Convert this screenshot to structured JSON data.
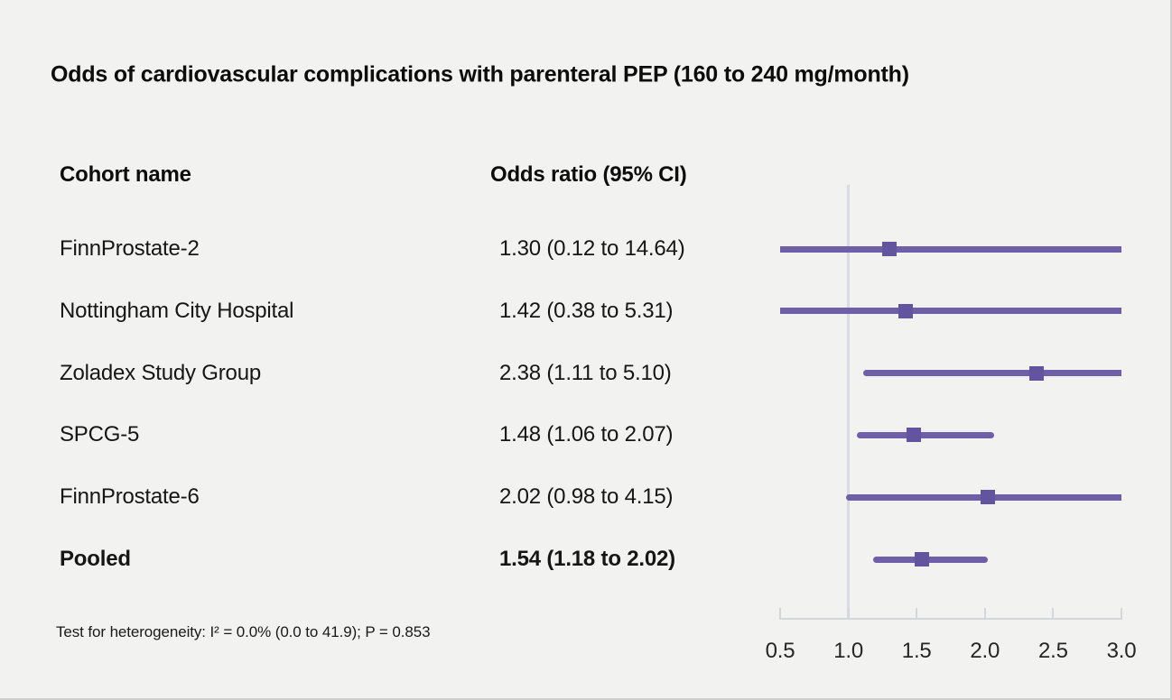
{
  "title": "Odds of cardiovascular complications with parenteral PEP (160 to 240 mg/month)",
  "table": {
    "cohort_header": "Cohort name",
    "or_header": "Odds ratio (95% CI)",
    "rows": [
      {
        "name": "FinnProstate-2",
        "or_text": "1.30 (0.12 to 14.64)"
      },
      {
        "name": "Nottingham City Hospital",
        "or_text": "1.42 (0.38 to 5.31)"
      },
      {
        "name": "Zoladex Study Group",
        "or_text": "2.38 (1.11 to 5.10)"
      },
      {
        "name": "SPCG-5",
        "or_text": "1.48 (1.06 to 2.07)"
      },
      {
        "name": "FinnProstate-6",
        "or_text": "2.02 (0.98 to 4.15)"
      },
      {
        "name": "Pooled",
        "or_text": "1.54 (1.18 to 2.02)"
      }
    ]
  },
  "footnote": "Test for heterogeneity: I² = 0.0% (0.0 to 41.9); P = 0.853",
  "chart_data": {
    "type": "scatter",
    "subtype": "forest-plot",
    "title": "Odds of cardiovascular complications with parenteral PEP (160 to 240 mg/month)",
    "xlabel": "",
    "ylabel": "",
    "xlim": [
      0.5,
      3.0
    ],
    "x_ticks": [
      0.5,
      1.0,
      1.5,
      2.0,
      2.5,
      3.0
    ],
    "x_tick_labels": [
      "0.5",
      "1.0",
      "1.5",
      "2.0",
      "2.5",
      "3.0"
    ],
    "reference_line_x": 1.0,
    "marker": "square",
    "grid": false,
    "points": [
      {
        "label": "FinnProstate-2",
        "estimate": 1.3,
        "ci_low": 0.12,
        "ci_high": 14.64,
        "pooled": false
      },
      {
        "label": "Nottingham City Hospital",
        "estimate": 1.42,
        "ci_low": 0.38,
        "ci_high": 5.31,
        "pooled": false
      },
      {
        "label": "Zoladex Study Group",
        "estimate": 2.38,
        "ci_low": 1.11,
        "ci_high": 5.1,
        "pooled": false
      },
      {
        "label": "SPCG-5",
        "estimate": 1.48,
        "ci_low": 1.06,
        "ci_high": 2.07,
        "pooled": false
      },
      {
        "label": "FinnProstate-6",
        "estimate": 2.02,
        "ci_low": 0.98,
        "ci_high": 4.15,
        "pooled": false
      },
      {
        "label": "Pooled",
        "estimate": 1.54,
        "ci_low": 1.18,
        "ci_high": 2.02,
        "pooled": true
      }
    ],
    "heterogeneity_note": "Test for heterogeneity: I² = 0.0% (0.0 to 41.9); P = 0.853",
    "colors": {
      "ci_line": "#6e5fa8",
      "marker": "#63549f",
      "reference_line": "#d9dbe3",
      "axis": "#d4d6dc",
      "background": "#f2f2f1",
      "text": "#161616"
    }
  }
}
